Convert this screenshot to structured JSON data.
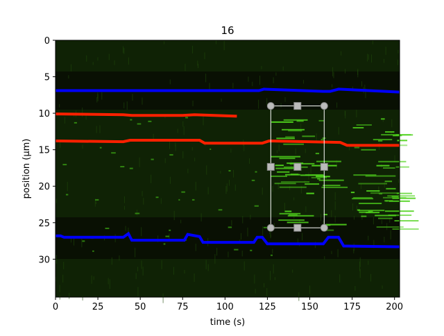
{
  "chart_data": {
    "type": "image",
    "title": "16",
    "x_label": "time (s)",
    "y_label": "position (μm)",
    "xlim": [
      0,
      203
    ],
    "ylim": [
      35.2,
      0
    ],
    "xticks": [
      0,
      25,
      50,
      75,
      100,
      125,
      150,
      175,
      200
    ],
    "yticks": [
      0,
      5,
      10,
      15,
      20,
      25,
      30
    ],
    "series": [
      {
        "color": "#0000ff",
        "x": [
          0,
          120,
          123,
          158,
          162,
          167,
          203
        ],
        "values": [
          6.9,
          6.9,
          6.7,
          7.0,
          7.0,
          6.7,
          7.1
        ]
      },
      {
        "color": "#0000ff",
        "x": [
          0,
          3,
          5,
          40,
          43,
          45,
          76,
          78,
          85,
          87,
          117,
          119,
          122,
          125,
          158,
          161,
          167,
          170,
          203
        ],
        "values": [
          26.8,
          26.8,
          27.0,
          27.0,
          26.5,
          27.4,
          27.4,
          26.6,
          26.9,
          27.7,
          27.7,
          27.0,
          27.0,
          27.9,
          27.9,
          27.0,
          27.0,
          28.2,
          28.3
        ]
      },
      {
        "color": "#ff2000",
        "x": [
          0,
          40,
          45,
          75,
          82,
          107
        ],
        "values": [
          10.1,
          10.2,
          10.3,
          10.3,
          10.2,
          10.4
        ]
      },
      {
        "color": "#ff2000",
        "x": [
          0,
          40,
          44,
          85,
          88,
          122,
          126,
          168,
          172,
          203
        ],
        "values": [
          13.8,
          13.9,
          13.7,
          13.7,
          14.1,
          14.1,
          13.8,
          14.0,
          14.4,
          14.4
        ]
      }
    ],
    "selection": {
      "xlim": [
        127,
        158.5
      ],
      "ylim": [
        9,
        25.7
      ],
      "color": "#ffffff"
    }
  }
}
